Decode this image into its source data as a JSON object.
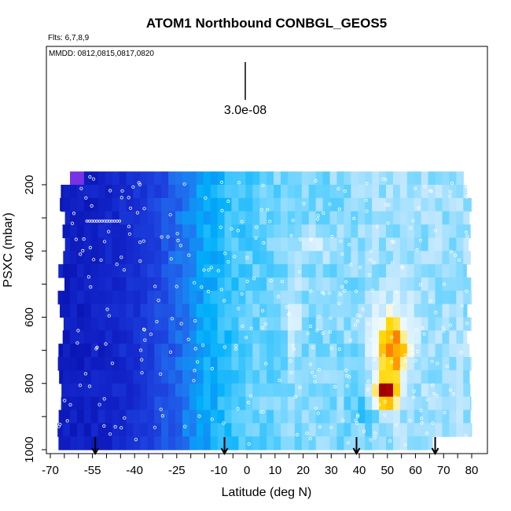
{
  "chart_data": {
    "type": "heatmap",
    "title": "ATOM1 Northbound CONBGL_GEOS5",
    "subtitle_flights": "Flts: 6,7,8,9",
    "subtitle_dates": "MMDD: 0812,0815,0817,0820",
    "xlabel": "Latitude (deg N)",
    "ylabel": "PSXC (mbar)",
    "xlim": [
      -70,
      80
    ],
    "ylim": [
      1000,
      100
    ],
    "x_ticks": [
      "-70",
      "-55",
      "-40",
      "-25",
      "-10",
      "0",
      "10",
      "20",
      "30",
      "40",
      "50",
      "60",
      "70",
      "80"
    ],
    "y_ticks": [
      "200",
      "400",
      "600",
      "800",
      "1000"
    ],
    "scale_label": "3.0e-08",
    "flight_latitudes": [
      -54,
      -8,
      39,
      67
    ],
    "hotspot": {
      "lat": 50,
      "pressure": 830
    },
    "secondary_maxima": [
      {
        "lat": 17,
        "pressure_range": [
          520,
          720
        ]
      },
      {
        "lat": 53,
        "pressure_range": [
          620,
          880
        ]
      }
    ]
  }
}
